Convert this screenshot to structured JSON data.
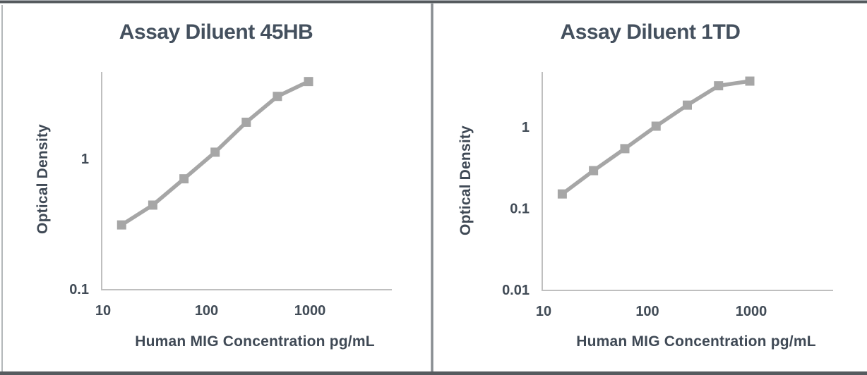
{
  "charts": [
    {
      "title": "Assay Diluent 45HB",
      "x_axis_title": "Human MIG Concentration pg/mL",
      "y_axis_title": "Optical Density"
    },
    {
      "title": "Assay Diluent 1TD",
      "x_axis_title": "Human MIG Concentration pg/mL",
      "y_axis_title": "Optical Density"
    }
  ],
  "chart_data": [
    {
      "type": "line",
      "title": "Assay Diluent 45HB",
      "xlabel": "Human MIG Concentration pg/mL",
      "ylabel": "Optical Density",
      "x_scale": "log",
      "y_scale": "log",
      "x": [
        15.6,
        31.2,
        62.5,
        125,
        250,
        500,
        1000
      ],
      "y": [
        0.31,
        0.44,
        0.7,
        1.12,
        1.9,
        3.0,
        3.9
      ],
      "x_ticks": [
        {
          "value": 10,
          "label": "10"
        },
        {
          "value": 100,
          "label": "100"
        },
        {
          "value": 1000,
          "label": "1000"
        }
      ],
      "y_ticks": [
        {
          "value": 1,
          "label": "1"
        },
        {
          "value": 0.1,
          "label": "0.1"
        }
      ],
      "xlim": [
        10,
        6300
      ],
      "ylim": [
        0.1,
        4.7
      ],
      "grid": false,
      "legend": false,
      "marker": "square",
      "series_color": "#a6a6a6"
    },
    {
      "type": "line",
      "title": "Assay Diluent 1TD",
      "xlabel": "Human MIG Concentration pg/mL",
      "ylabel": "Optical Density",
      "x_scale": "log",
      "y_scale": "log",
      "x": [
        15.6,
        31.2,
        62.5,
        125,
        250,
        500,
        1000
      ],
      "y": [
        0.15,
        0.29,
        0.54,
        1.02,
        1.85,
        3.2,
        3.65
      ],
      "x_ticks": [
        {
          "value": 10,
          "label": "10"
        },
        {
          "value": 100,
          "label": "100"
        },
        {
          "value": 1000,
          "label": "1000"
        }
      ],
      "y_ticks": [
        {
          "value": 1,
          "label": "1"
        },
        {
          "value": 0.1,
          "label": "0.1"
        },
        {
          "value": 0.01,
          "label": "0.01"
        }
      ],
      "xlim": [
        10,
        6300
      ],
      "ylim": [
        0.01,
        4.6
      ],
      "grid": false,
      "legend": false,
      "marker": "square",
      "series_color": "#a6a6a6"
    }
  ],
  "colors": {
    "series": "#a6a6a6",
    "axis_line": "#bfbfbf",
    "title_text": "#44505e",
    "label_text": "#3f4955",
    "divider": "#898e92",
    "frame_border": "#565b5f",
    "background": "#ffffff"
  }
}
